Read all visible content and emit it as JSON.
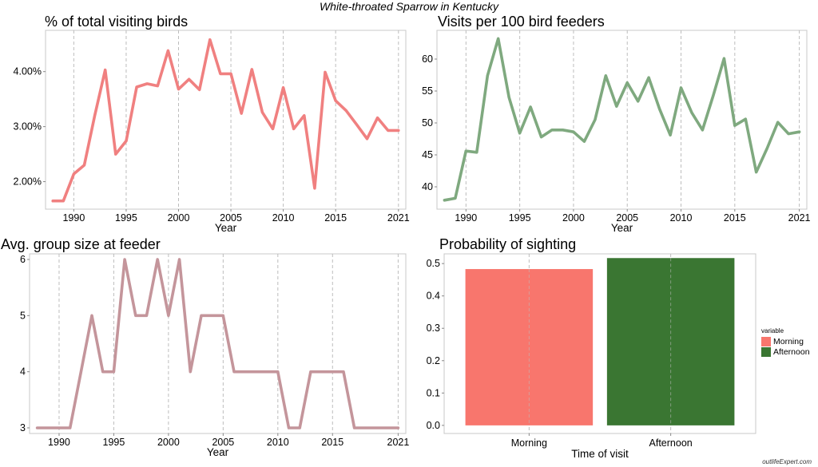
{
  "title": "White-throated Sparrow in Kentucky",
  "credit": "outlifeExpert.com",
  "chart_data": [
    {
      "type": "line",
      "title": "% of total visiting birds",
      "xlabel": "Year",
      "ylabel": "",
      "xlim": [
        1987.3,
        2021.7
      ],
      "ylim": [
        1.5,
        4.75
      ],
      "xticks": [
        1990,
        1995,
        2000,
        2005,
        2010,
        2015,
        2021
      ],
      "yticks": [
        2,
        3,
        4
      ],
      "ytick_labels": [
        "2.00%",
        "3.00%",
        "4.00%"
      ],
      "color": "#F08080",
      "x": [
        1988,
        1989,
        1990,
        1991,
        1992,
        1993,
        1994,
        1995,
        1996,
        1997,
        1998,
        1999,
        2000,
        2001,
        2002,
        2003,
        2004,
        2005,
        2006,
        2007,
        2008,
        2009,
        2010,
        2011,
        2012,
        2013,
        2014,
        2015,
        2016,
        2017,
        2018,
        2019,
        2020,
        2021
      ],
      "y": [
        1.65,
        1.65,
        2.14,
        2.3,
        3.2,
        4.03,
        2.5,
        2.74,
        3.72,
        3.78,
        3.74,
        4.38,
        3.68,
        3.86,
        3.67,
        4.58,
        3.96,
        3.96,
        3.24,
        4.04,
        3.26,
        2.96,
        3.71,
        2.96,
        3.2,
        1.88,
        3.99,
        3.47,
        3.29,
        3.04,
        2.78,
        3.16,
        2.93,
        2.93
      ]
    },
    {
      "type": "line",
      "title": "Visits per 100 bird feeders",
      "xlabel": "Year",
      "ylabel": "",
      "xlim": [
        1987.3,
        2021.7
      ],
      "ylim": [
        36.5,
        64.5
      ],
      "xticks": [
        1990,
        1995,
        2000,
        2005,
        2010,
        2015,
        2021
      ],
      "yticks": [
        40,
        45,
        50,
        55,
        60
      ],
      "ytick_labels": [
        "40",
        "45",
        "50",
        "55",
        "60"
      ],
      "color": "#7FA97F",
      "x": [
        1988,
        1989,
        1990,
        1991,
        1992,
        1993,
        1994,
        1995,
        1996,
        1997,
        1998,
        1999,
        2000,
        2001,
        2002,
        2003,
        2004,
        2005,
        2006,
        2007,
        2008,
        2009,
        2010,
        2011,
        2012,
        2013,
        2014,
        2015,
        2016,
        2017,
        2018,
        2019,
        2020,
        2021
      ],
      "y": [
        37.9,
        38.2,
        45.6,
        45.4,
        57.4,
        63.2,
        54.0,
        48.4,
        52.5,
        47.8,
        48.9,
        48.9,
        48.6,
        47.1,
        50.5,
        57.4,
        52.6,
        56.3,
        53.4,
        57.1,
        52.2,
        48.1,
        55.5,
        51.6,
        48.9,
        54.3,
        60.1,
        49.6,
        50.6,
        42.3,
        46.0,
        50.1,
        48.3,
        48.6
      ]
    },
    {
      "type": "line",
      "title": "Avg. group size at feeder",
      "xlabel": "Year",
      "ylabel": "",
      "xlim": [
        1987.3,
        2021.7
      ],
      "ylim": [
        2.9,
        6.1
      ],
      "xticks": [
        1990,
        1995,
        2000,
        2005,
        2010,
        2015,
        2021
      ],
      "yticks": [
        3,
        4,
        5,
        6
      ],
      "ytick_labels": [
        "3",
        "4",
        "5",
        "6"
      ],
      "color": "#C4959B",
      "x": [
        1988,
        1989,
        1990,
        1991,
        1992,
        1993,
        1994,
        1995,
        1996,
        1997,
        1998,
        1999,
        2000,
        2001,
        2002,
        2003,
        2004,
        2005,
        2006,
        2007,
        2008,
        2009,
        2010,
        2011,
        2012,
        2013,
        2014,
        2015,
        2016,
        2017,
        2018,
        2019,
        2020,
        2021
      ],
      "y": [
        3,
        3,
        3,
        3,
        4,
        5,
        4,
        4,
        6,
        5,
        5,
        6,
        5,
        6,
        4,
        5,
        5,
        5,
        4,
        4,
        4,
        4,
        4,
        3,
        3,
        4,
        4,
        4,
        4,
        3,
        3,
        3,
        3,
        3
      ]
    },
    {
      "type": "bar",
      "title": "Probability of sighting",
      "xlabel": "Time of visit",
      "ylabel": "",
      "ylim": [
        -0.025,
        0.53
      ],
      "yticks": [
        0,
        0.1,
        0.2,
        0.3,
        0.4,
        0.5
      ],
      "ytick_labels": [
        "0.0",
        "0.1",
        "0.2",
        "0.3",
        "0.4",
        "0.5"
      ],
      "categories": [
        "Morning",
        "Afternoon"
      ],
      "values": [
        0.483,
        0.517
      ],
      "colors": [
        "#F8766D",
        "#3A7632"
      ],
      "legend": {
        "title": "variable",
        "placement": "right",
        "items": [
          {
            "label": "Morning",
            "color": "#F8766D"
          },
          {
            "label": "Afternoon",
            "color": "#3A7632"
          }
        ]
      }
    }
  ]
}
